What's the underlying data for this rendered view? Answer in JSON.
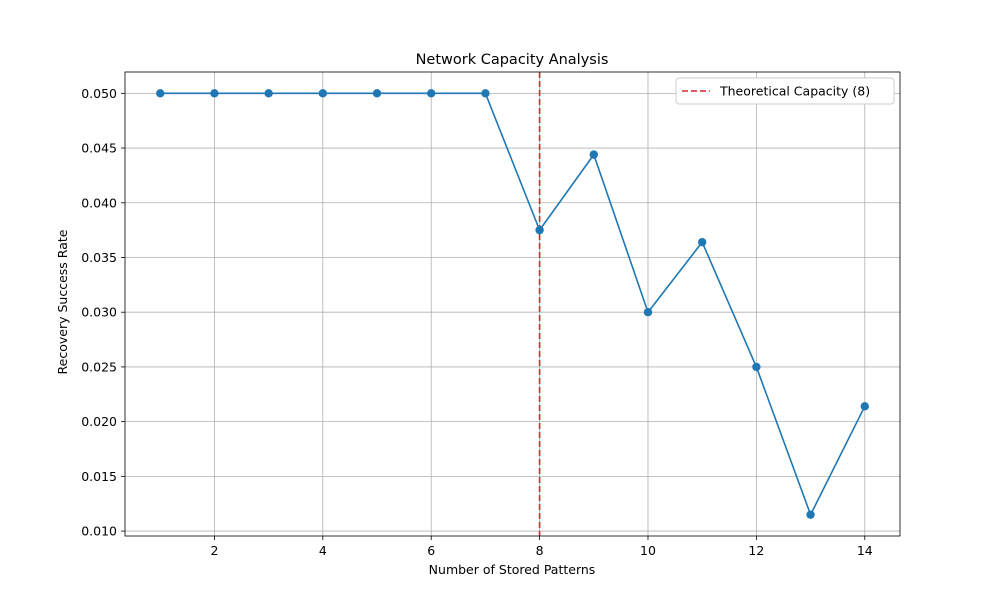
{
  "chart_data": {
    "type": "line",
    "title": "Network Capacity Analysis",
    "xlabel": "Number of Stored Patterns",
    "ylabel": "Recovery Success Rate",
    "xlim": [
      0.35,
      14.65
    ],
    "ylim": [
      0.00955,
      0.05195
    ],
    "x_ticks": [
      2,
      4,
      6,
      8,
      10,
      12,
      14
    ],
    "y_ticks": [
      0.01,
      0.015,
      0.02,
      0.025,
      0.03,
      0.035,
      0.04,
      0.045,
      0.05
    ],
    "y_tick_labels": [
      "0.010",
      "0.015",
      "0.020",
      "0.025",
      "0.030",
      "0.035",
      "0.040",
      "0.045",
      "0.050"
    ],
    "grid": true,
    "legend_position": "top-right",
    "series": [
      {
        "color": "#1f77b4",
        "marker": "circle",
        "x": [
          1,
          2,
          3,
          4,
          5,
          6,
          7,
          8,
          9,
          10,
          11,
          12,
          13,
          14
        ],
        "y": [
          0.05,
          0.05,
          0.05,
          0.05,
          0.05,
          0.05,
          0.05,
          0.0375,
          0.0444,
          0.03,
          0.0364,
          0.025,
          0.0115,
          0.0214
        ]
      }
    ],
    "reference_lines": [
      {
        "orientation": "vertical",
        "x": 8,
        "color": "#d62728",
        "style": "dashed",
        "label": "Theoretical Capacity (8)"
      }
    ]
  }
}
